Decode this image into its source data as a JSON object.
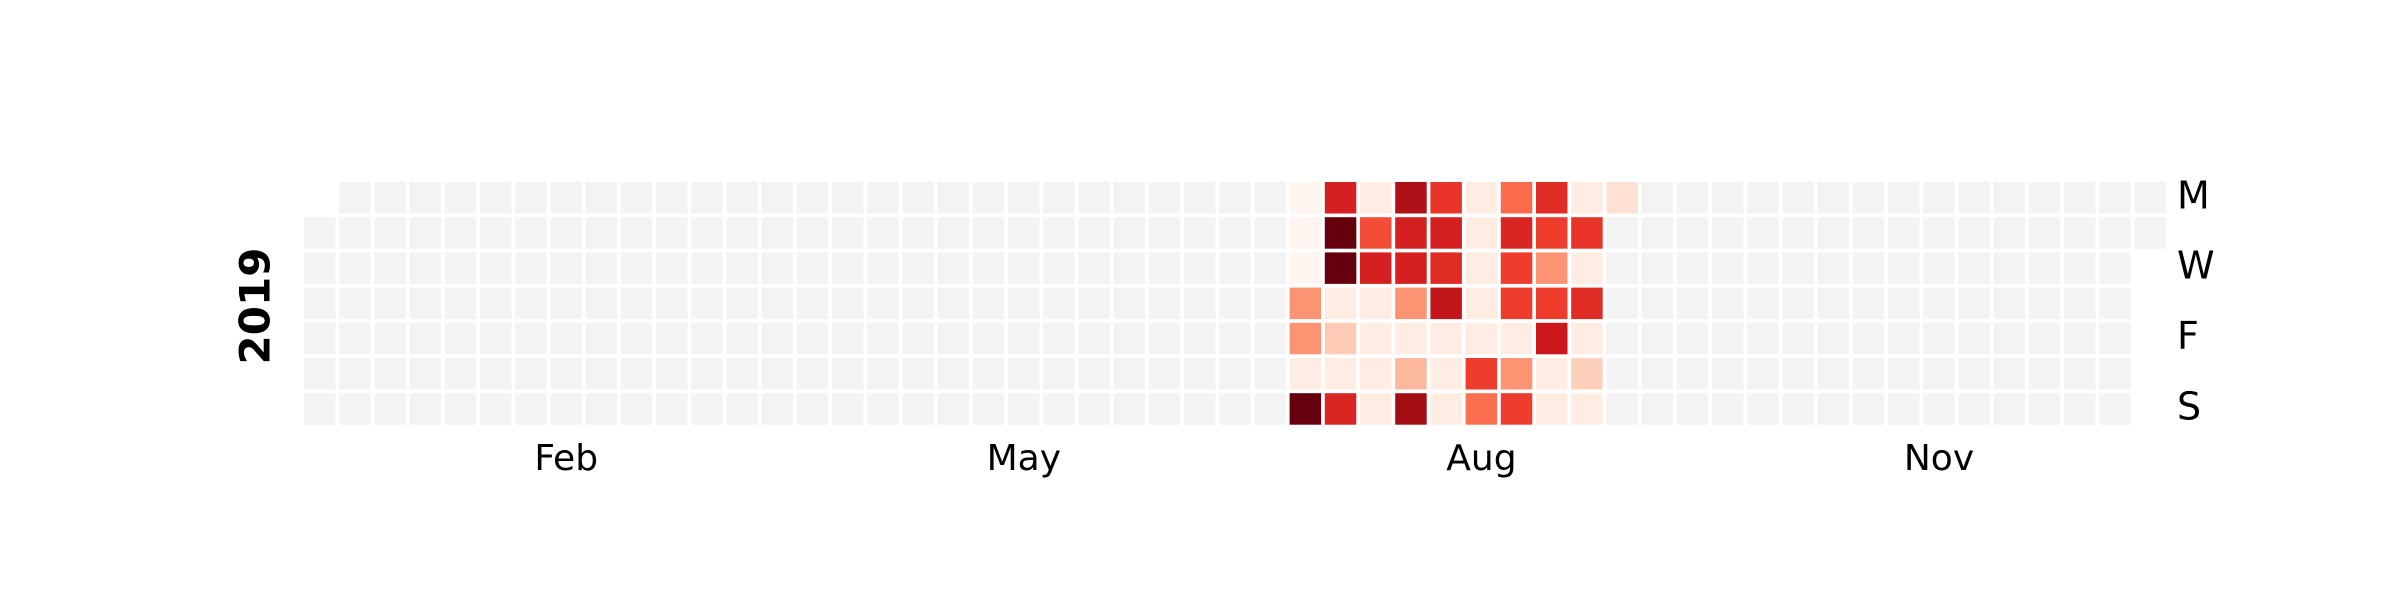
{
  "chart_data": {
    "type": "heatmap",
    "subtype": "calendar",
    "year": "2019",
    "first_weekday": "Tuesday",
    "month_labels": [
      {
        "label": "Feb",
        "week": 7
      },
      {
        "label": "May",
        "week": 20
      },
      {
        "label": "Aug",
        "week": 33
      },
      {
        "label": "Nov",
        "week": 46
      }
    ],
    "day_labels": [
      {
        "label": "M",
        "row": 0
      },
      {
        "label": "W",
        "row": 2
      },
      {
        "label": "F",
        "row": 4
      },
      {
        "label": "S",
        "row": 6
      }
    ],
    "colormap": "Reds",
    "value_range": [
      0,
      1
    ],
    "empty_color": "#f3f3f3",
    "grid": false,
    "legend": "none",
    "active_weeks": [
      {
        "week": 28,
        "values": [
          0.0,
          0.0,
          0.0,
          0.37,
          0.37,
          0.05,
          1.0
        ]
      },
      {
        "week": 29,
        "values": [
          0.72,
          1.0,
          1.0,
          0.05,
          0.2,
          0.05,
          0.7
        ]
      },
      {
        "week": 30,
        "values": [
          0.05,
          0.58,
          0.72,
          0.05,
          0.05,
          0.05,
          0.05
        ]
      },
      {
        "week": 31,
        "values": [
          0.85,
          0.72,
          0.72,
          0.37,
          0.05,
          0.26,
          0.88
        ]
      },
      {
        "week": 32,
        "values": [
          0.65,
          0.72,
          0.68,
          0.78,
          0.05,
          0.05,
          0.05
        ]
      },
      {
        "week": 33,
        "values": [
          0.05,
          0.05,
          0.05,
          0.05,
          0.05,
          0.62,
          0.48
        ]
      },
      {
        "week": 34,
        "values": [
          0.5,
          0.7,
          0.62,
          0.62,
          0.05,
          0.37,
          0.62
        ]
      },
      {
        "week": 35,
        "values": [
          0.68,
          0.62,
          0.37,
          0.62,
          0.75,
          0.05,
          0.05
        ]
      },
      {
        "week": 36,
        "values": [
          0.05,
          0.65,
          0.05,
          0.68,
          0.05,
          0.18,
          0.05
        ]
      },
      {
        "week": 37,
        "values": [
          0.12,
          null,
          null,
          null,
          null,
          null,
          null
        ]
      }
    ]
  }
}
